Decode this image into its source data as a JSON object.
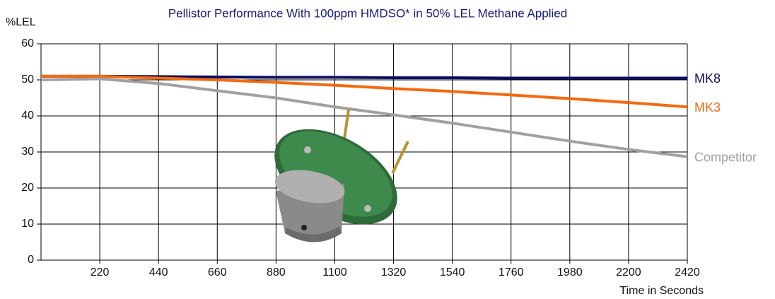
{
  "chart_data": {
    "type": "line",
    "title": "Pellistor Performance With 100ppm HMDSO* in 50% LEL Methane Applied",
    "y_label": "%LEL",
    "x_label": "Time in Seconds",
    "x": [
      0,
      220,
      440,
      660,
      880,
      1100,
      1320,
      1540,
      1760,
      1980,
      2200,
      2420
    ],
    "series": [
      {
        "name": "MK8",
        "color": "#0c0c5e",
        "values": [
          51,
          51,
          50.9,
          50.8,
          50.7,
          50.7,
          50.6,
          50.6,
          50.5,
          50.5,
          50.5,
          50.5
        ]
      },
      {
        "name": "MK3",
        "color": "#f26a0f",
        "values": [
          51,
          51,
          50.5,
          50,
          49.3,
          48.5,
          47.6,
          46.8,
          45.8,
          44.8,
          43.7,
          42.5
        ]
      },
      {
        "name": "Competitor",
        "color": "#a0a0a0",
        "values": [
          50,
          50.3,
          49,
          47,
          45,
          42.5,
          40.3,
          38,
          35.5,
          33,
          30.7,
          28.7
        ]
      }
    ],
    "xlim": [
      0,
      2420
    ],
    "xticks": [
      220,
      440,
      660,
      880,
      1100,
      1320,
      1540,
      1760,
      1980,
      2200,
      2420
    ],
    "ylim": [
      0,
      60
    ],
    "yticks": [
      0,
      10,
      20,
      30,
      40,
      50,
      60
    ],
    "grid": true
  }
}
